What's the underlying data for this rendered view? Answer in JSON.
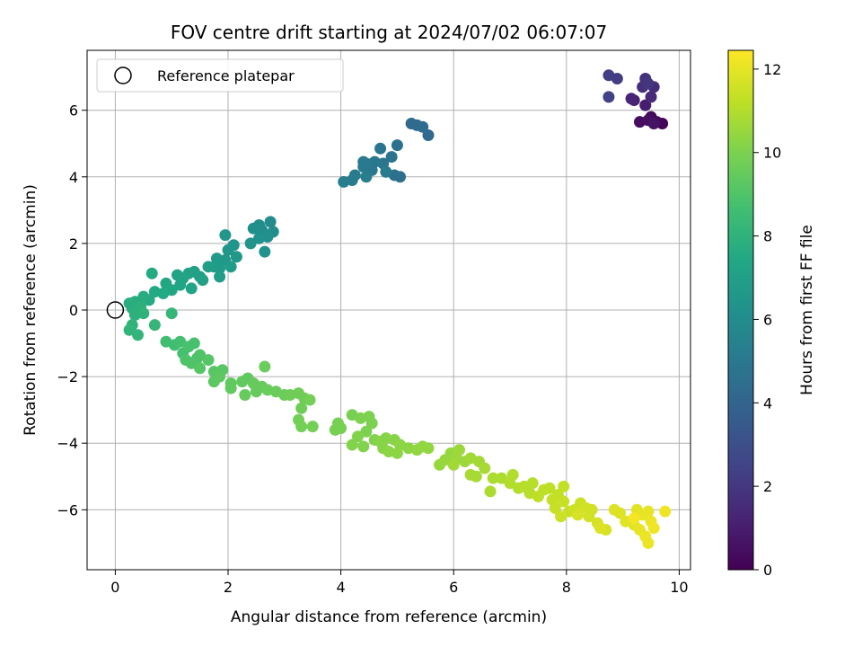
{
  "chart_data": {
    "type": "scatter",
    "title": "FOV centre drift starting at 2024/07/02 06:07:07",
    "xlabel": "Angular distance from reference (arcmin)",
    "ylabel": "Rotation from reference (arcmin)",
    "colorbar_label": "Hours from first FF file",
    "xlim": [
      -0.5,
      10.2
    ],
    "ylim": [
      -7.8,
      7.8
    ],
    "xticks": [
      0,
      2,
      4,
      6,
      8,
      10
    ],
    "yticks": [
      -6,
      -4,
      -2,
      0,
      2,
      4,
      6
    ],
    "colorbar_range": [
      0,
      12.45
    ],
    "colorbar_ticks": [
      0,
      2,
      4,
      6,
      8,
      10,
      12
    ],
    "colormap": "viridis",
    "grid": true,
    "legend": {
      "placement": "top-left",
      "entries": [
        {
          "label": "Reference platepar",
          "marker": "open-circle"
        }
      ]
    },
    "reference_point": {
      "x": 0,
      "y": 0
    },
    "points": [
      {
        "x": 9.7,
        "y": 5.6,
        "c": 0.1
      },
      {
        "x": 9.6,
        "y": 5.65,
        "c": 0.2
      },
      {
        "x": 9.5,
        "y": 5.8,
        "c": 0.3
      },
      {
        "x": 9.3,
        "y": 5.65,
        "c": 0.4
      },
      {
        "x": 9.45,
        "y": 5.7,
        "c": 0.5
      },
      {
        "x": 9.55,
        "y": 5.6,
        "c": 0.6
      },
      {
        "x": 9.4,
        "y": 6.15,
        "c": 1.0
      },
      {
        "x": 9.2,
        "y": 6.3,
        "c": 1.2
      },
      {
        "x": 9.15,
        "y": 6.35,
        "c": 1.3
      },
      {
        "x": 9.5,
        "y": 6.4,
        "c": 1.5
      },
      {
        "x": 9.55,
        "y": 6.7,
        "c": 1.6
      },
      {
        "x": 9.35,
        "y": 6.7,
        "c": 1.7
      },
      {
        "x": 9.4,
        "y": 6.95,
        "c": 1.8
      },
      {
        "x": 9.45,
        "y": 6.8,
        "c": 1.9
      },
      {
        "x": 8.9,
        "y": 6.95,
        "c": 2.2
      },
      {
        "x": 8.75,
        "y": 7.05,
        "c": 2.3
      },
      {
        "x": 8.75,
        "y": 6.4,
        "c": 2.4
      },
      {
        "x": 5.55,
        "y": 5.25,
        "c": 4.2
      },
      {
        "x": 5.35,
        "y": 5.55,
        "c": 4.3
      },
      {
        "x": 5.25,
        "y": 5.6,
        "c": 4.3
      },
      {
        "x": 5.45,
        "y": 5.5,
        "c": 4.4
      },
      {
        "x": 5.05,
        "y": 4.0,
        "c": 4.6
      },
      {
        "x": 4.95,
        "y": 4.05,
        "c": 4.6
      },
      {
        "x": 5.0,
        "y": 4.95,
        "c": 4.7
      },
      {
        "x": 4.9,
        "y": 4.6,
        "c": 4.8
      },
      {
        "x": 4.7,
        "y": 4.85,
        "c": 4.9
      },
      {
        "x": 4.75,
        "y": 4.4,
        "c": 4.9
      },
      {
        "x": 4.6,
        "y": 4.45,
        "c": 5.0
      },
      {
        "x": 4.55,
        "y": 4.2,
        "c": 5.0
      },
      {
        "x": 4.45,
        "y": 4.4,
        "c": 5.1
      },
      {
        "x": 4.4,
        "y": 4.3,
        "c": 5.1
      },
      {
        "x": 4.25,
        "y": 4.05,
        "c": 5.2
      },
      {
        "x": 4.2,
        "y": 3.9,
        "c": 5.2
      },
      {
        "x": 4.05,
        "y": 3.85,
        "c": 5.3
      },
      {
        "x": 4.45,
        "y": 4.0,
        "c": 5.3
      },
      {
        "x": 4.8,
        "y": 4.15,
        "c": 5.2
      },
      {
        "x": 4.4,
        "y": 4.45,
        "c": 5.1
      },
      {
        "x": 2.75,
        "y": 2.65,
        "c": 6.0
      },
      {
        "x": 2.8,
        "y": 2.35,
        "c": 6.0
      },
      {
        "x": 2.55,
        "y": 2.55,
        "c": 6.1
      },
      {
        "x": 2.6,
        "y": 2.4,
        "c": 6.1
      },
      {
        "x": 2.45,
        "y": 2.45,
        "c": 6.2
      },
      {
        "x": 2.7,
        "y": 2.2,
        "c": 6.2
      },
      {
        "x": 2.65,
        "y": 1.75,
        "c": 6.3
      },
      {
        "x": 2.55,
        "y": 2.15,
        "c": 6.3
      },
      {
        "x": 2.4,
        "y": 2.0,
        "c": 6.4
      },
      {
        "x": 2.1,
        "y": 1.95,
        "c": 6.4
      },
      {
        "x": 2.0,
        "y": 1.8,
        "c": 6.5
      },
      {
        "x": 1.95,
        "y": 2.25,
        "c": 6.5
      },
      {
        "x": 2.15,
        "y": 1.6,
        "c": 6.6
      },
      {
        "x": 1.95,
        "y": 1.5,
        "c": 6.6
      },
      {
        "x": 1.85,
        "y": 1.25,
        "c": 6.7
      },
      {
        "x": 1.8,
        "y": 1.55,
        "c": 6.7
      },
      {
        "x": 1.75,
        "y": 1.3,
        "c": 6.8
      },
      {
        "x": 2.05,
        "y": 1.3,
        "c": 6.8
      },
      {
        "x": 1.85,
        "y": 1.0,
        "c": 6.9
      },
      {
        "x": 1.65,
        "y": 1.3,
        "c": 6.9
      },
      {
        "x": 1.5,
        "y": 1.0,
        "c": 7.0
      },
      {
        "x": 1.4,
        "y": 1.15,
        "c": 7.0
      },
      {
        "x": 1.55,
        "y": 0.9,
        "c": 7.1
      },
      {
        "x": 1.3,
        "y": 1.1,
        "c": 7.1
      },
      {
        "x": 1.2,
        "y": 0.95,
        "c": 7.2
      },
      {
        "x": 1.1,
        "y": 1.05,
        "c": 7.2
      },
      {
        "x": 1.35,
        "y": 0.65,
        "c": 7.3
      },
      {
        "x": 1.15,
        "y": 0.75,
        "c": 7.3
      },
      {
        "x": 1.0,
        "y": 0.6,
        "c": 7.4
      },
      {
        "x": 0.9,
        "y": 0.8,
        "c": 7.4
      },
      {
        "x": 0.85,
        "y": 0.5,
        "c": 7.5
      },
      {
        "x": 0.7,
        "y": 0.55,
        "c": 7.5
      },
      {
        "x": 0.65,
        "y": 1.1,
        "c": 7.6
      },
      {
        "x": 0.6,
        "y": 0.3,
        "c": 7.6
      },
      {
        "x": 0.5,
        "y": 0.4,
        "c": 7.7
      },
      {
        "x": 0.35,
        "y": 0.25,
        "c": 7.7
      },
      {
        "x": 0.25,
        "y": 0.2,
        "c": 7.8
      },
      {
        "x": 0.3,
        "y": 0.05,
        "c": 7.8
      },
      {
        "x": 0.45,
        "y": 0.1,
        "c": 7.9
      },
      {
        "x": 0.35,
        "y": -0.15,
        "c": 7.9
      },
      {
        "x": 0.5,
        "y": -0.1,
        "c": 8.0
      },
      {
        "x": 0.3,
        "y": -0.45,
        "c": 8.0
      },
      {
        "x": 0.25,
        "y": -0.6,
        "c": 8.1
      },
      {
        "x": 0.4,
        "y": -0.75,
        "c": 8.1
      },
      {
        "x": 0.7,
        "y": -0.45,
        "c": 8.2
      },
      {
        "x": 1.0,
        "y": -0.1,
        "c": 8.2
      },
      {
        "x": 0.9,
        "y": -0.95,
        "c": 8.6
      },
      {
        "x": 1.05,
        "y": -1.05,
        "c": 8.6
      },
      {
        "x": 1.15,
        "y": -0.95,
        "c": 8.7
      },
      {
        "x": 1.2,
        "y": -1.3,
        "c": 8.7
      },
      {
        "x": 1.3,
        "y": -1.1,
        "c": 8.8
      },
      {
        "x": 1.4,
        "y": -1.0,
        "c": 8.8
      },
      {
        "x": 1.25,
        "y": -1.5,
        "c": 8.9
      },
      {
        "x": 1.45,
        "y": -1.45,
        "c": 8.9
      },
      {
        "x": 1.35,
        "y": -1.6,
        "c": 9.0
      },
      {
        "x": 1.5,
        "y": -1.35,
        "c": 9.0
      },
      {
        "x": 1.5,
        "y": -1.75,
        "c": 9.1
      },
      {
        "x": 1.65,
        "y": -1.5,
        "c": 9.1
      },
      {
        "x": 1.75,
        "y": -1.85,
        "c": 9.2
      },
      {
        "x": 1.9,
        "y": -1.8,
        "c": 9.2
      },
      {
        "x": 1.75,
        "y": -2.15,
        "c": 9.3
      },
      {
        "x": 1.85,
        "y": -2.0,
        "c": 9.3
      },
      {
        "x": 2.05,
        "y": -2.2,
        "c": 9.4
      },
      {
        "x": 2.05,
        "y": -2.35,
        "c": 9.4
      },
      {
        "x": 2.25,
        "y": -2.15,
        "c": 9.4
      },
      {
        "x": 2.35,
        "y": -2.05,
        "c": 9.4
      },
      {
        "x": 2.45,
        "y": -2.2,
        "c": 9.5
      },
      {
        "x": 2.5,
        "y": -2.45,
        "c": 9.5
      },
      {
        "x": 2.3,
        "y": -2.55,
        "c": 9.5
      },
      {
        "x": 2.6,
        "y": -2.3,
        "c": 9.5
      },
      {
        "x": 2.65,
        "y": -1.7,
        "c": 9.6
      },
      {
        "x": 2.7,
        "y": -2.4,
        "c": 9.6
      },
      {
        "x": 2.85,
        "y": -2.45,
        "c": 9.6
      },
      {
        "x": 3.0,
        "y": -2.55,
        "c": 9.6
      },
      {
        "x": 3.1,
        "y": -2.55,
        "c": 9.7
      },
      {
        "x": 3.25,
        "y": -2.5,
        "c": 9.7
      },
      {
        "x": 3.3,
        "y": -2.95,
        "c": 9.7
      },
      {
        "x": 3.35,
        "y": -2.65,
        "c": 9.7
      },
      {
        "x": 3.45,
        "y": -2.7,
        "c": 9.8
      },
      {
        "x": 3.25,
        "y": -3.3,
        "c": 9.8
      },
      {
        "x": 3.3,
        "y": -3.5,
        "c": 9.8
      },
      {
        "x": 3.5,
        "y": -3.5,
        "c": 9.8
      },
      {
        "x": 3.95,
        "y": -3.4,
        "c": 9.9
      },
      {
        "x": 4.0,
        "y": -3.55,
        "c": 9.9
      },
      {
        "x": 3.9,
        "y": -3.6,
        "c": 9.9
      },
      {
        "x": 4.2,
        "y": -3.15,
        "c": 9.9
      },
      {
        "x": 4.35,
        "y": -3.25,
        "c": 10.0
      },
      {
        "x": 4.5,
        "y": -3.2,
        "c": 10.0
      },
      {
        "x": 4.55,
        "y": -3.4,
        "c": 10.0
      },
      {
        "x": 4.45,
        "y": -3.65,
        "c": 10.0
      },
      {
        "x": 4.6,
        "y": -3.9,
        "c": 10.1
      },
      {
        "x": 4.3,
        "y": -3.8,
        "c": 10.1
      },
      {
        "x": 4.2,
        "y": -4.05,
        "c": 10.1
      },
      {
        "x": 4.4,
        "y": -4.1,
        "c": 10.1
      },
      {
        "x": 4.7,
        "y": -3.95,
        "c": 10.2
      },
      {
        "x": 4.8,
        "y": -3.85,
        "c": 10.2
      },
      {
        "x": 4.95,
        "y": -3.9,
        "c": 10.2
      },
      {
        "x": 4.75,
        "y": -4.15,
        "c": 10.2
      },
      {
        "x": 4.85,
        "y": -4.25,
        "c": 10.3
      },
      {
        "x": 5.0,
        "y": -4.3,
        "c": 10.3
      },
      {
        "x": 5.05,
        "y": -4.05,
        "c": 10.3
      },
      {
        "x": 5.2,
        "y": -4.15,
        "c": 10.3
      },
      {
        "x": 5.35,
        "y": -4.2,
        "c": 10.4
      },
      {
        "x": 5.45,
        "y": -4.1,
        "c": 10.4
      },
      {
        "x": 5.55,
        "y": -4.15,
        "c": 10.4
      },
      {
        "x": 5.75,
        "y": -4.65,
        "c": 10.5
      },
      {
        "x": 5.85,
        "y": -4.5,
        "c": 10.5
      },
      {
        "x": 5.95,
        "y": -4.3,
        "c": 10.5
      },
      {
        "x": 6.05,
        "y": -4.45,
        "c": 10.6
      },
      {
        "x": 6.1,
        "y": -4.2,
        "c": 10.6
      },
      {
        "x": 6.2,
        "y": -4.55,
        "c": 10.6
      },
      {
        "x": 6.0,
        "y": -4.65,
        "c": 10.7
      },
      {
        "x": 6.3,
        "y": -4.45,
        "c": 10.7
      },
      {
        "x": 6.45,
        "y": -4.55,
        "c": 10.7
      },
      {
        "x": 6.55,
        "y": -4.75,
        "c": 10.8
      },
      {
        "x": 6.3,
        "y": -4.95,
        "c": 10.8
      },
      {
        "x": 6.4,
        "y": -5.0,
        "c": 10.8
      },
      {
        "x": 6.7,
        "y": -5.05,
        "c": 10.9
      },
      {
        "x": 6.65,
        "y": -5.45,
        "c": 10.9
      },
      {
        "x": 6.85,
        "y": -5.05,
        "c": 10.9
      },
      {
        "x": 7.0,
        "y": -5.2,
        "c": 11.0
      },
      {
        "x": 7.05,
        "y": -4.95,
        "c": 11.0
      },
      {
        "x": 7.15,
        "y": -5.35,
        "c": 11.0
      },
      {
        "x": 7.25,
        "y": -5.3,
        "c": 11.1
      },
      {
        "x": 7.35,
        "y": -5.5,
        "c": 11.1
      },
      {
        "x": 7.4,
        "y": -5.2,
        "c": 11.1
      },
      {
        "x": 7.5,
        "y": -5.6,
        "c": 11.2
      },
      {
        "x": 7.6,
        "y": -5.4,
        "c": 11.2
      },
      {
        "x": 7.7,
        "y": -5.35,
        "c": 11.2
      },
      {
        "x": 7.75,
        "y": -5.7,
        "c": 11.3
      },
      {
        "x": 7.85,
        "y": -5.55,
        "c": 11.3
      },
      {
        "x": 7.95,
        "y": -5.3,
        "c": 11.3
      },
      {
        "x": 7.8,
        "y": -5.95,
        "c": 11.4
      },
      {
        "x": 7.95,
        "y": -5.75,
        "c": 11.4
      },
      {
        "x": 8.05,
        "y": -6.05,
        "c": 11.4
      },
      {
        "x": 7.9,
        "y": -6.2,
        "c": 11.5
      },
      {
        "x": 8.15,
        "y": -6.0,
        "c": 11.5
      },
      {
        "x": 8.25,
        "y": -5.8,
        "c": 11.5
      },
      {
        "x": 8.35,
        "y": -5.95,
        "c": 11.6
      },
      {
        "x": 8.45,
        "y": -6.0,
        "c": 11.6
      },
      {
        "x": 8.4,
        "y": -6.2,
        "c": 11.6
      },
      {
        "x": 8.2,
        "y": -6.15,
        "c": 11.7
      },
      {
        "x": 8.55,
        "y": -6.4,
        "c": 11.7
      },
      {
        "x": 8.7,
        "y": -6.6,
        "c": 11.7
      },
      {
        "x": 8.6,
        "y": -6.55,
        "c": 11.8
      },
      {
        "x": 8.85,
        "y": -6.0,
        "c": 11.8
      },
      {
        "x": 8.95,
        "y": -6.1,
        "c": 11.8
      },
      {
        "x": 9.05,
        "y": -6.35,
        "c": 11.9
      },
      {
        "x": 9.2,
        "y": -6.45,
        "c": 11.9
      },
      {
        "x": 9.25,
        "y": -6.0,
        "c": 11.9
      },
      {
        "x": 9.35,
        "y": -6.15,
        "c": 12.0
      },
      {
        "x": 9.45,
        "y": -6.05,
        "c": 12.0
      },
      {
        "x": 9.3,
        "y": -6.6,
        "c": 12.0
      },
      {
        "x": 9.4,
        "y": -6.8,
        "c": 12.1
      },
      {
        "x": 9.45,
        "y": -7.0,
        "c": 12.1
      },
      {
        "x": 9.5,
        "y": -6.35,
        "c": 12.1
      },
      {
        "x": 9.55,
        "y": -6.55,
        "c": 12.2
      },
      {
        "x": 9.75,
        "y": -6.05,
        "c": 12.2
      },
      {
        "x": 9.2,
        "y": -6.25,
        "c": 12.3
      }
    ]
  }
}
